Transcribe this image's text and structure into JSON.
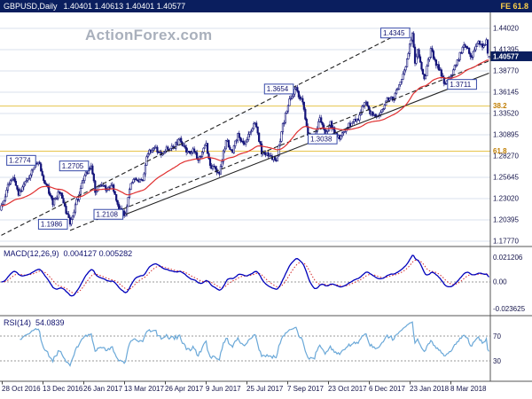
{
  "title_bar": {
    "symbol": "GBPUSD,Daily",
    "quote": "1.40401 1.40613 1.40401 1.40577",
    "fe_label": "FE 61.8"
  },
  "watermark": "ActionForex.com",
  "colors": {
    "titlebar_bg": "#0a1e5e",
    "titlebar_text": "#ffffff",
    "fe_text": "#ffd24a",
    "candle": "#15157a",
    "ma_line": "#e03030",
    "macd_line": "#0000bb",
    "macd_signal": "#d42a2a",
    "rsi_line": "#6aa8d8",
    "grid": "#d9e1ec",
    "fib_line": "#e6c44c",
    "fib_text": "#c07d00",
    "trendline": "#222222",
    "axis_text": "#14144a",
    "separator": "#555555",
    "swing_box_border": "#3548a8",
    "swing_box_text": "#10126e",
    "price_tag_bg": "#0a1e5e",
    "price_tag_text": "#ffffff",
    "watermark_color": "#a9b0bc",
    "panel_bg": "#ffffff"
  },
  "chart_data": [
    {
      "type": "candlestick",
      "symbol": "GBPUSD",
      "timeframe": "Daily",
      "open": "1.40401",
      "high": "1.40613",
      "low": "1.40401",
      "close": "1.40577",
      "last_price": "1.40577",
      "ylim": [
        1.171,
        1.46
      ],
      "y_ticks": [
        "1.44020",
        "1.41395",
        "1.38770",
        "1.36145",
        "1.33520",
        "1.30895",
        "1.28270",
        "1.25645",
        "1.23020",
        "1.20395",
        "1.17770"
      ],
      "x_tick_labels": [
        "28 Oct 2016",
        "13 Dec 2016",
        "26 Jan 2017",
        "13 Mar 2017",
        "26 Apr 2017",
        "9 Jun 2017",
        "25 Jul 2017",
        "7 Sep 2017",
        "23 Oct 2017",
        "6 Dec 2017",
        "23 Jan 2018",
        "8 Mar 2018"
      ],
      "days": 370,
      "price_path": [
        [
          0,
          1.219
        ],
        [
          5,
          1.246
        ],
        [
          9,
          1.256
        ],
        [
          13,
          1.234
        ],
        [
          18,
          1.25
        ],
        [
          28,
          1.2774
        ],
        [
          31,
          1.258
        ],
        [
          35,
          1.243
        ],
        [
          39,
          1.225
        ],
        [
          44,
          1.24
        ],
        [
          48,
          1.22
        ],
        [
          52,
          1.1986
        ],
        [
          58,
          1.232
        ],
        [
          63,
          1.259
        ],
        [
          68,
          1.2705
        ],
        [
          71,
          1.239
        ],
        [
          75,
          1.248
        ],
        [
          79,
          1.243
        ],
        [
          84,
          1.246
        ],
        [
          89,
          1.217
        ],
        [
          94,
          1.2108
        ],
        [
          98,
          1.248
        ],
        [
          102,
          1.255
        ],
        [
          107,
          1.25
        ],
        [
          110,
          1.284
        ],
        [
          116,
          1.295
        ],
        [
          120,
          1.286
        ],
        [
          126,
          1.292
        ],
        [
          131,
          1.294
        ],
        [
          135,
          1.304
        ],
        [
          141,
          1.287
        ],
        [
          145,
          1.289
        ],
        [
          149,
          1.279
        ],
        [
          155,
          1.296
        ],
        [
          158,
          1.27
        ],
        [
          165,
          1.263
        ],
        [
          170,
          1.302
        ],
        [
          175,
          1.288
        ],
        [
          179,
          1.31
        ],
        [
          183,
          1.296
        ],
        [
          192,
          1.323
        ],
        [
          197,
          1.288
        ],
        [
          203,
          1.283
        ],
        [
          208,
          1.2774
        ],
        [
          213,
          1.32
        ],
        [
          218,
          1.352
        ],
        [
          223,
          1.3654
        ],
        [
          228,
          1.348
        ],
        [
          232,
          1.306
        ],
        [
          237,
          1.3027
        ],
        [
          241,
          1.333
        ],
        [
          245,
          1.308
        ],
        [
          249,
          1.323
        ],
        [
          252,
          1.312
        ],
        [
          256,
          1.3038
        ],
        [
          261,
          1.318
        ],
        [
          266,
          1.325
        ],
        [
          270,
          1.33
        ],
        [
          275,
          1.352
        ],
        [
          279,
          1.337
        ],
        [
          285,
          1.332
        ],
        [
          288,
          1.339
        ],
        [
          291,
          1.35
        ],
        [
          294,
          1.356
        ],
        [
          297,
          1.354
        ],
        [
          301,
          1.372
        ],
        [
          305,
          1.386
        ],
        [
          308,
          1.41
        ],
        [
          311,
          1.4345
        ],
        [
          313,
          1.398
        ],
        [
          315,
          1.412
        ],
        [
          318,
          1.39
        ],
        [
          320,
          1.3765
        ],
        [
          325,
          1.414
        ],
        [
          329,
          1.396
        ],
        [
          332,
          1.389
        ],
        [
          335,
          1.3711
        ],
        [
          338,
          1.379
        ],
        [
          340,
          1.382
        ],
        [
          343,
          1.394
        ],
        [
          347,
          1.408
        ],
        [
          350,
          1.422
        ],
        [
          353,
          1.416
        ],
        [
          355,
          1.404
        ],
        [
          358,
          1.413
        ],
        [
          361,
          1.423
        ],
        [
          364,
          1.418
        ],
        [
          367,
          1.424
        ],
        [
          368,
          1.408
        ],
        [
          369,
          1.40577
        ]
      ],
      "swing_labels": [
        {
          "text": "1.2774",
          "day": 28,
          "price": 1.2774,
          "side": "left"
        },
        {
          "text": "1.1986",
          "day": 52,
          "price": 1.1986,
          "side": "left"
        },
        {
          "text": "1.2705",
          "day": 68,
          "price": 1.2705,
          "side": "left"
        },
        {
          "text": "1.2108",
          "day": 94,
          "price": 1.2108,
          "side": "left"
        },
        {
          "text": "1.3654",
          "day": 223,
          "price": 1.3654,
          "side": "left"
        },
        {
          "text": "1.3038",
          "day": 256,
          "price": 1.3038,
          "side": "left"
        },
        {
          "text": "1.4345",
          "day": 311,
          "price": 1.4345,
          "side": "left"
        },
        {
          "text": "1.3711",
          "day": 335,
          "price": 1.3711,
          "side": "right"
        }
      ],
      "fib_levels": [
        {
          "label": "38.2",
          "price": 1.3444
        },
        {
          "label": "61.8",
          "price": 1.2887
        }
      ],
      "trendlines": [
        {
          "style": "dashed",
          "d1": 0,
          "p1": 1.185,
          "d2": 311,
          "p2": 1.442
        },
        {
          "style": "dashed",
          "d1": 52,
          "p1": 1.191,
          "d2": 369,
          "p2": 1.4
        },
        {
          "style": "solid",
          "d1": 94,
          "p1": 1.2108,
          "d2": 369,
          "p2": 1.385
        }
      ],
      "ma_period": 55
    },
    {
      "type": "line",
      "title": "MACD(12,26,9)",
      "values_label": "0.004127 0.005282",
      "macd_current": "0.004127",
      "signal_current": "0.005282",
      "fast": 12,
      "slow": 26,
      "signal": 9,
      "y_ticks": [
        "0.021206",
        "0.00",
        "-0.023625"
      ]
    },
    {
      "type": "line",
      "title": "RSI(14)",
      "current": "54.0839",
      "period": 14,
      "levels": [
        "70",
        "30"
      ],
      "range": [
        0,
        100
      ]
    }
  ]
}
